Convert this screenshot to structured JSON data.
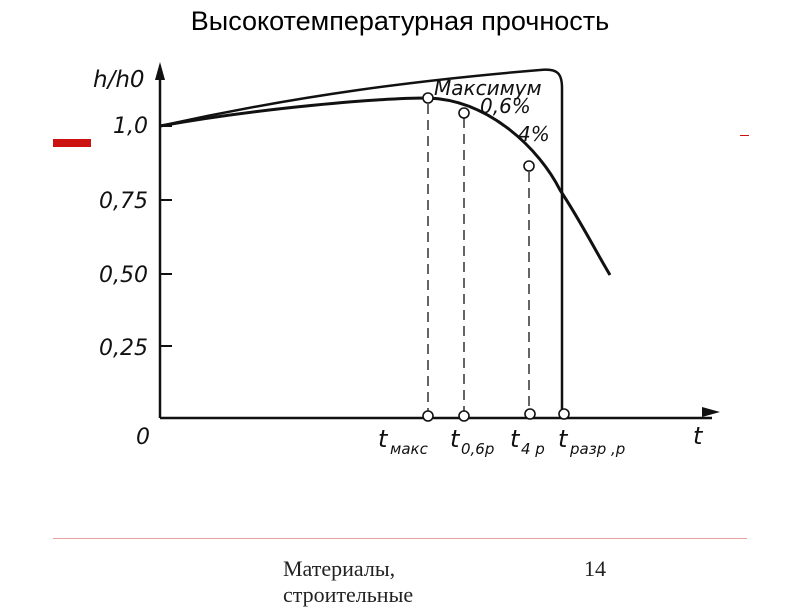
{
  "slide": {
    "title": "Высокотемпературная прочность",
    "footer_text": "Материалы, строительные",
    "page_number": "14"
  },
  "diagram": {
    "y_axis_label": "h/h0",
    "y_ticks": [
      "1,0",
      "0,75",
      "0,50",
      "0,25"
    ],
    "origin_label": "0",
    "x_axis_label": "t",
    "annotations": {
      "maximum": "Максимум",
      "pct_06": "0,6%",
      "pct_4": "4%"
    },
    "time_labels": {
      "t_max_base": "t",
      "t_max_sub": "макс",
      "t_06_base": "t",
      "t_06_sub": "0,6р",
      "t_4_base": "t",
      "t_4_sub": "4 р",
      "t_break_base": "t",
      "t_break_sub": "разр ,р"
    },
    "colors": {
      "accent": "#cc1111",
      "line": "#111111"
    }
  }
}
